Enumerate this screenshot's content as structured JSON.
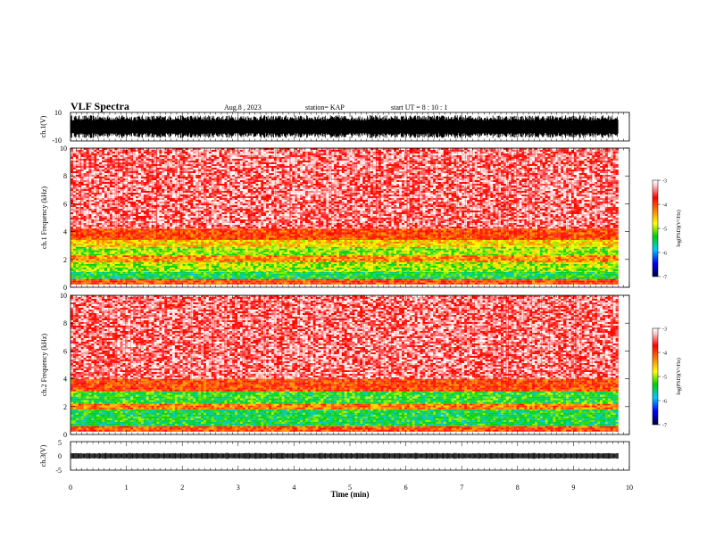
{
  "header": {
    "title": "VLF Spectra",
    "date": "Aug.8 , 2023",
    "station": "station= KAP",
    "start": "start UT = 8 : 10 : 1"
  },
  "chart_data": [
    {
      "type": "line",
      "panel": "ch1-waveform",
      "ylabel": "ch.1(V)",
      "ylim": [
        -10,
        10
      ],
      "yticks": [
        "10",
        "-10"
      ],
      "description_values": {
        "typical_envelope": [
          -8,
          8
        ]
      }
    },
    {
      "type": "heatmap",
      "panel": "ch1-spectrogram",
      "ylabel": "ch.1 Frequency (kHz)",
      "ylim": [
        0,
        10
      ],
      "yticks": [
        "0",
        "2",
        "4",
        "6",
        "8",
        "10"
      ],
      "colorbar": {
        "label": "log(PSD)(V²/Hz)",
        "range": [
          -7,
          -3
        ],
        "ticks": [
          "-3",
          "-4",
          "-5",
          "-6",
          "-7"
        ]
      },
      "bands_khz": [
        {
          "from": 0.2,
          "to": 0.6,
          "level": -4.0
        },
        {
          "from": 0.6,
          "to": 1.1,
          "level": -5.4
        },
        {
          "from": 1.1,
          "to": 1.8,
          "level": -5.0
        },
        {
          "from": 1.8,
          "to": 2.3,
          "level": -4.3
        },
        {
          "from": 2.3,
          "to": 2.9,
          "level": -5.0
        },
        {
          "from": 2.9,
          "to": 3.4,
          "level": -4.6
        },
        {
          "from": 3.4,
          "to": 4.2,
          "level": -4.0
        },
        {
          "from": 4.2,
          "to": 10.0,
          "level": -3.4
        }
      ]
    },
    {
      "type": "heatmap",
      "panel": "ch2-spectrogram",
      "ylabel": "ch.2 Frequency (kHz)",
      "ylim": [
        0,
        10
      ],
      "yticks": [
        "0",
        "2",
        "4",
        "6",
        "8",
        "10"
      ],
      "colorbar": {
        "label": "log(PSD)(V²/Hz)",
        "range": [
          -7,
          -3
        ],
        "ticks": [
          "-3",
          "-4",
          "-5",
          "-6",
          "-7"
        ]
      },
      "bands_khz": [
        {
          "from": 0.2,
          "to": 0.6,
          "level": -4.0
        },
        {
          "from": 0.6,
          "to": 1.8,
          "level": -5.4
        },
        {
          "from": 1.8,
          "to": 2.2,
          "level": -4.2
        },
        {
          "from": 2.2,
          "to": 3.1,
          "level": -5.3
        },
        {
          "from": 3.1,
          "to": 4.0,
          "level": -4.0
        },
        {
          "from": 4.0,
          "to": 10.0,
          "level": -3.4
        }
      ]
    },
    {
      "type": "line",
      "panel": "ch3-waveform",
      "ylabel": "ch.3(V)",
      "ylim": [
        -5,
        5
      ],
      "yticks": [
        "5",
        "0",
        "-5"
      ],
      "description_values": {
        "typical_envelope": [
          -1,
          1
        ]
      }
    }
  ],
  "xaxis": {
    "label": "Time (min)",
    "xlim": [
      0,
      10
    ],
    "ticks": [
      "0",
      "1",
      "2",
      "3",
      "4",
      "5",
      "6",
      "7",
      "8",
      "9",
      "10"
    ],
    "data_end_min": 9.8
  },
  "colors": {
    "red": "#ff0000",
    "orange": "#ff8c00",
    "yellow": "#ffff00",
    "green": "#00d000",
    "cyan": "#00c8ff",
    "blue": "#0000ff",
    "black": "#000000"
  }
}
